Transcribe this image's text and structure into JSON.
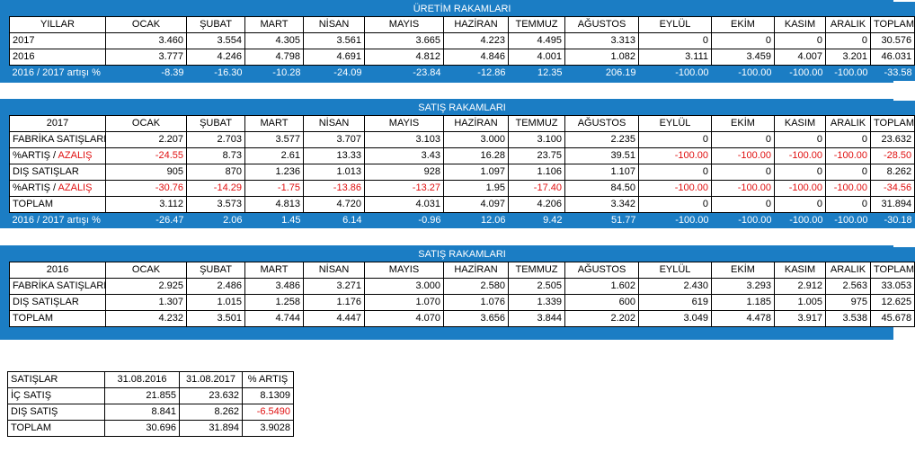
{
  "headers": [
    "OCAK",
    "ŞUBAT",
    "MART",
    "NİSAN",
    "MAYIS",
    "HAZİRAN",
    "TEMMUZ",
    "AĞUSTOS",
    "EYLÜL",
    "EKİM",
    "KASIM",
    "ARALIK",
    "TOPLAM"
  ],
  "uretim": {
    "title": "ÜRETİM RAKAMLARI",
    "corner": "YILLAR",
    "rows": [
      {
        "label": "2017",
        "values": [
          "3.460",
          "3.554",
          "4.305",
          "3.561",
          "3.665",
          "4.223",
          "4.495",
          "3.313",
          "0",
          "0",
          "0",
          "0",
          "30.576"
        ]
      },
      {
        "label": "2016",
        "values": [
          "3.777",
          "4.246",
          "4.798",
          "4.691",
          "4.812",
          "4.846",
          "4.001",
          "1.082",
          "3.111",
          "3.459",
          "4.007",
          "3.201",
          "46.031"
        ]
      }
    ],
    "pct": {
      "label": "2016 / 2017 artışı %",
      "values": [
        "-8.39",
        "-16.30",
        "-10.28",
        "-24.09",
        "-23.84",
        "-12.86",
        "12.35",
        "206.19",
        "-100.00",
        "-100.00",
        "-100.00",
        "-100.00",
        "-33.58"
      ]
    }
  },
  "satis2017": {
    "title": "SATIŞ RAKAMLARI",
    "corner": "2017",
    "rows": [
      {
        "label": "FABRİKA SATIŞLARI",
        "values": [
          "2.207",
          "2.703",
          "3.577",
          "3.707",
          "3.103",
          "3.000",
          "3.100",
          "2.235",
          "0",
          "0",
          "0",
          "0",
          "23.632"
        ]
      },
      {
        "label_a": "%ARTIŞ / ",
        "label_b": "AZALIŞ",
        "values": [
          "-24.55",
          "8.73",
          "2.61",
          "13.33",
          "3.43",
          "16.28",
          "23.75",
          "39.51",
          "-100.00",
          "-100.00",
          "-100.00",
          "-100.00",
          "-28.50"
        ],
        "red": [
          true,
          false,
          false,
          false,
          false,
          false,
          false,
          false,
          true,
          true,
          true,
          true,
          true
        ]
      },
      {
        "label": "DIŞ SATIŞLAR",
        "values": [
          "905",
          "870",
          "1.236",
          "1.013",
          "928",
          "1.097",
          "1.106",
          "1.107",
          "0",
          "0",
          "0",
          "0",
          "8.262"
        ]
      },
      {
        "label_a": "%ARTIŞ / ",
        "label_b": "AZALIŞ",
        "values": [
          "-30.76",
          "-14.29",
          "-1.75",
          "-13.86",
          "-13.27",
          "1.95",
          "-17.40",
          "84.50",
          "-100.00",
          "-100.00",
          "-100.00",
          "-100.00",
          "-34.56"
        ],
        "red": [
          true,
          true,
          true,
          true,
          true,
          false,
          true,
          false,
          true,
          true,
          true,
          true,
          true
        ]
      },
      {
        "label": "TOPLAM",
        "values": [
          "3.112",
          "3.573",
          "4.813",
          "4.720",
          "4.031",
          "4.097",
          "4.206",
          "3.342",
          "0",
          "0",
          "0",
          "0",
          "31.894"
        ]
      }
    ],
    "pct": {
      "label": "2016 / 2017 artışı %",
      "values": [
        "-26.47",
        "2.06",
        "1.45",
        "6.14",
        "-0.96",
        "12.06",
        "9.42",
        "51.77",
        "-100.00",
        "-100.00",
        "-100.00",
        "-100.00",
        "-30.18"
      ]
    }
  },
  "satis2016": {
    "title": "SATIŞ RAKAMLARI",
    "corner": "2016",
    "rows": [
      {
        "label": "FABRİKA SATIŞLARI",
        "values": [
          "2.925",
          "2.486",
          "3.486",
          "3.271",
          "3.000",
          "2.580",
          "2.505",
          "1.602",
          "2.430",
          "3.293",
          "2.912",
          "2.563",
          "33.053"
        ]
      },
      {
        "label": "DIŞ SATIŞLAR",
        "values": [
          "1.307",
          "1.015",
          "1.258",
          "1.176",
          "1.070",
          "1.076",
          "1.339",
          "600",
          "619",
          "1.185",
          "1.005",
          "975",
          "12.625"
        ]
      },
      {
        "label": "TOPLAM",
        "values": [
          "4.232",
          "3.501",
          "4.744",
          "4.447",
          "4.070",
          "3.656",
          "3.844",
          "2.202",
          "3.049",
          "4.478",
          "3.917",
          "3.538",
          "45.678"
        ]
      }
    ]
  },
  "summary": {
    "headers": [
      "SATIŞLAR",
      "31.08.2016",
      "31.08.2017",
      "% ARTIŞ"
    ],
    "rows": [
      {
        "label": "İÇ SATIŞ",
        "values": [
          "21.855",
          "23.632",
          "8.1309"
        ],
        "red": false
      },
      {
        "label": "DIŞ SATIŞ",
        "values": [
          "8.841",
          "8.262",
          "-6.5490"
        ],
        "red": true
      },
      {
        "label": "TOPLAM",
        "values": [
          "30.696",
          "31.894",
          "3.9028"
        ],
        "red": false
      }
    ]
  }
}
